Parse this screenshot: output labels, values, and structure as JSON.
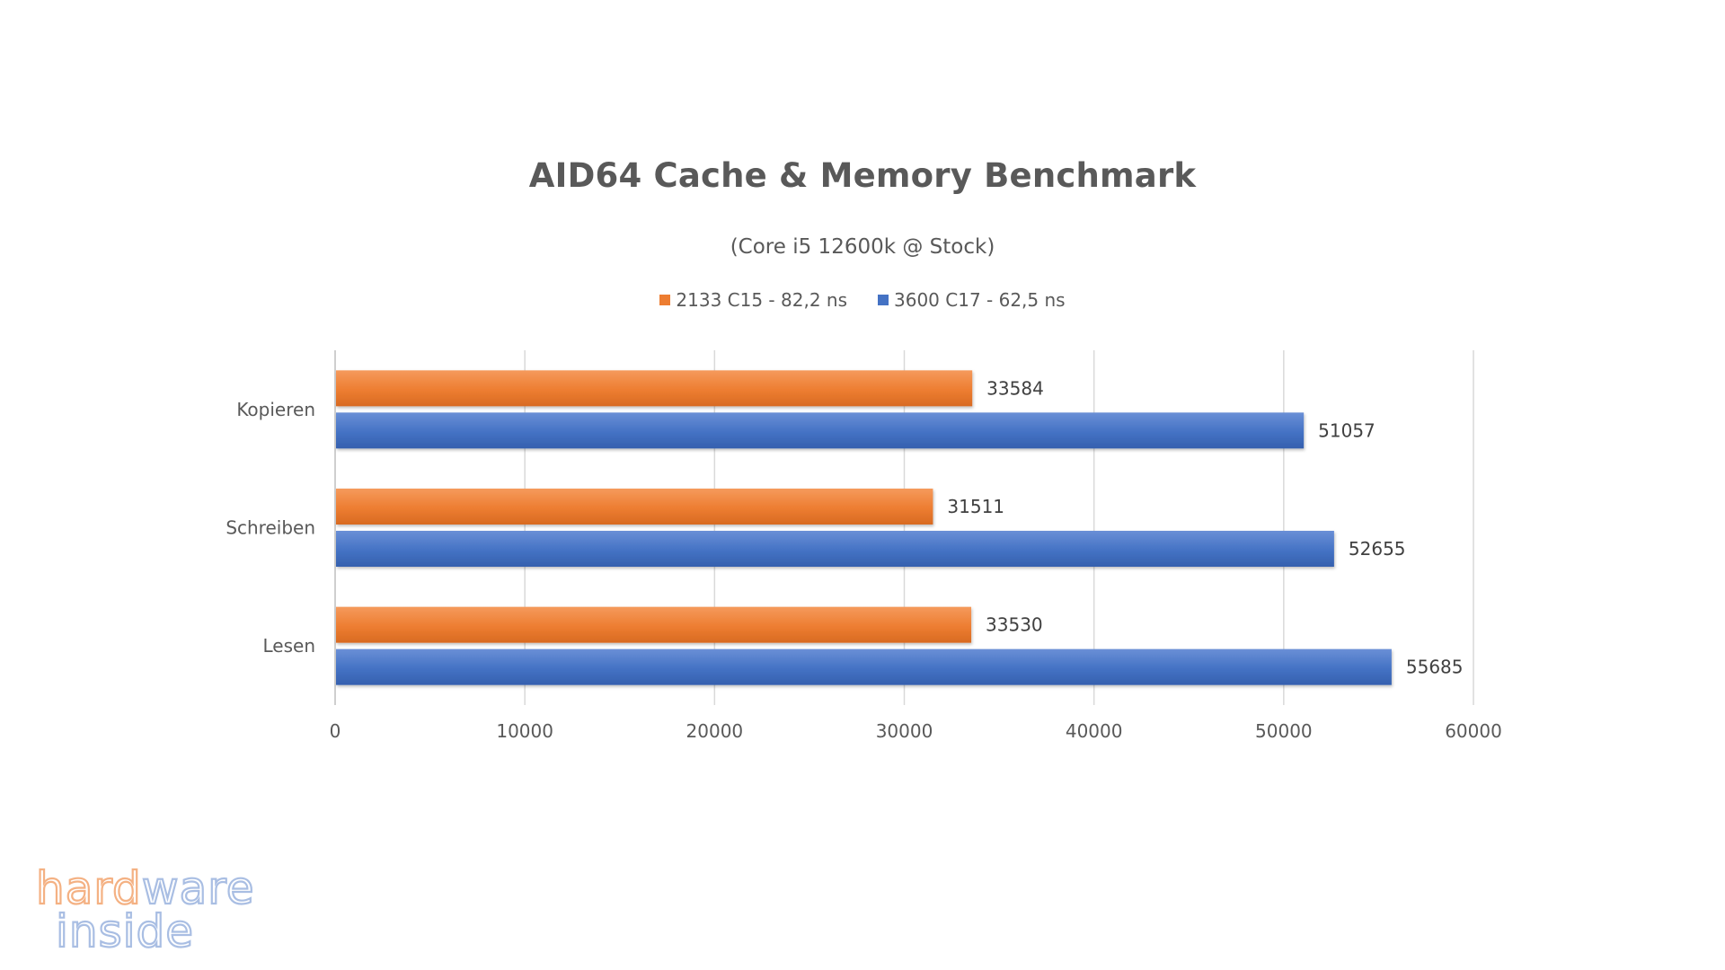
{
  "chart_data": {
    "type": "bar",
    "orientation": "horizontal",
    "title": "AID64 Cache & Memory Benchmark",
    "subtitle": "(Core i5 12600k @ Stock)",
    "categories": [
      "Kopieren",
      "Schreiben",
      "Lesen"
    ],
    "series": [
      {
        "name": "2133 C15 - 82,2 ns",
        "color": "#ED7D31",
        "values": [
          33584,
          31511,
          33530
        ]
      },
      {
        "name": "3600 C17 - 62,5 ns",
        "color": "#4472C4",
        "values": [
          51057,
          52655,
          55685
        ]
      }
    ],
    "xlim": [
      0,
      60000
    ],
    "xticks": [
      "0",
      "10000",
      "20000",
      "30000",
      "40000",
      "50000",
      "60000"
    ],
    "grid": true,
    "legend_position": "top",
    "data_labels": true
  },
  "watermark": {
    "line1": "hardware",
    "line2": "inside"
  }
}
